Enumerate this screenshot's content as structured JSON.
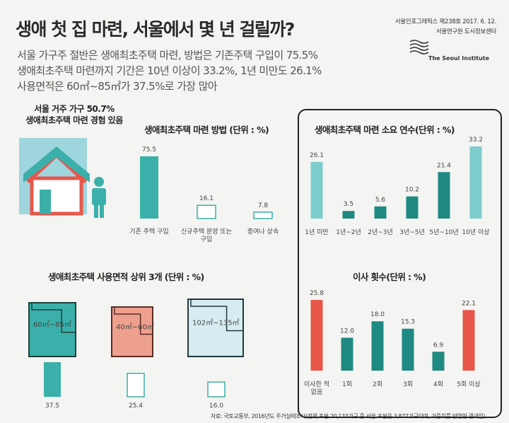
{
  "header": {
    "title": "생애 첫 집 마련, 서울에서 몇 년 걸릴까?",
    "subtitle_lines": [
      "서울 가구주 절반은 생애최초주택 마련, 방법은 기존주택 구입이 75.5%",
      "생애최초주택 마련까지 기간은 10년 이상이 33.2%, 1년 미만도 26.1%",
      "사용면적은 60㎡~85㎡가 37.5%로 가장 많아"
    ],
    "issue": "서울인포그래픽스 제238호 2017. 6. 12.",
    "org": "서울연구원 도시정보센터",
    "org_en": "The Seoul Institute"
  },
  "experience": {
    "line1": "서울 거주 가구 50.7%",
    "line2": "생애최초주택 마련 경험 있음"
  },
  "colors": {
    "teal": "#3bb0aa",
    "dark_teal": "#1f8a82",
    "light_teal": "#7ccdcb",
    "red": "#e8564a",
    "salmon": "#eea08e",
    "light_blue": "#d7ecf1",
    "house_bg": "#9fd6de"
  },
  "chart_data": [
    {
      "type": "bar",
      "title": "생애최초주택 마련 방법 (단위 : %)",
      "categories": [
        "기존 주택 구입",
        "신규주택 분양 또는 구입",
        "증여나 상속"
      ],
      "values": [
        75.5,
        16.1,
        7.8
      ],
      "fills": [
        "solid",
        "outline",
        "outline"
      ]
    },
    {
      "type": "bar",
      "title": "생애최초주택 마련 소요 연수(단위 : %)",
      "categories": [
        "1년 미만",
        "1년~2년",
        "2년~3년",
        "3년~5년",
        "5년~10년",
        "10년 이상"
      ],
      "values": [
        26.1,
        3.5,
        5.6,
        10.2,
        21.4,
        33.2
      ]
    },
    {
      "type": "bar",
      "title": "생애최초주택 사용면적 상위 3개 (단위 : %)",
      "categories": [
        "60㎡~85㎡",
        "40㎡~60㎡",
        "102㎡~135㎡"
      ],
      "values": [
        37.5,
        25.4,
        16.0
      ],
      "value_labels": [
        "37.5",
        "25.4",
        "16.0"
      ]
    },
    {
      "type": "bar",
      "title": "이사 횟수(단위 : %)",
      "categories": [
        "이사한 적 없음",
        "1회",
        "2회",
        "3회",
        "4회",
        "5회 이상"
      ],
      "values": [
        25.8,
        12.0,
        18.0,
        15.3,
        6.9,
        22.1
      ],
      "value_labels": [
        "25.8",
        "12.0",
        "18.0",
        "15.3",
        "6.9",
        "22.1"
      ]
    }
  ],
  "source": "자료: 국토교통부, 2016년도 주거실태조사(전체 표본 20,133가구 중 서울 표본은 3,877가구이며, 가중치를 반영한 결과임)"
}
